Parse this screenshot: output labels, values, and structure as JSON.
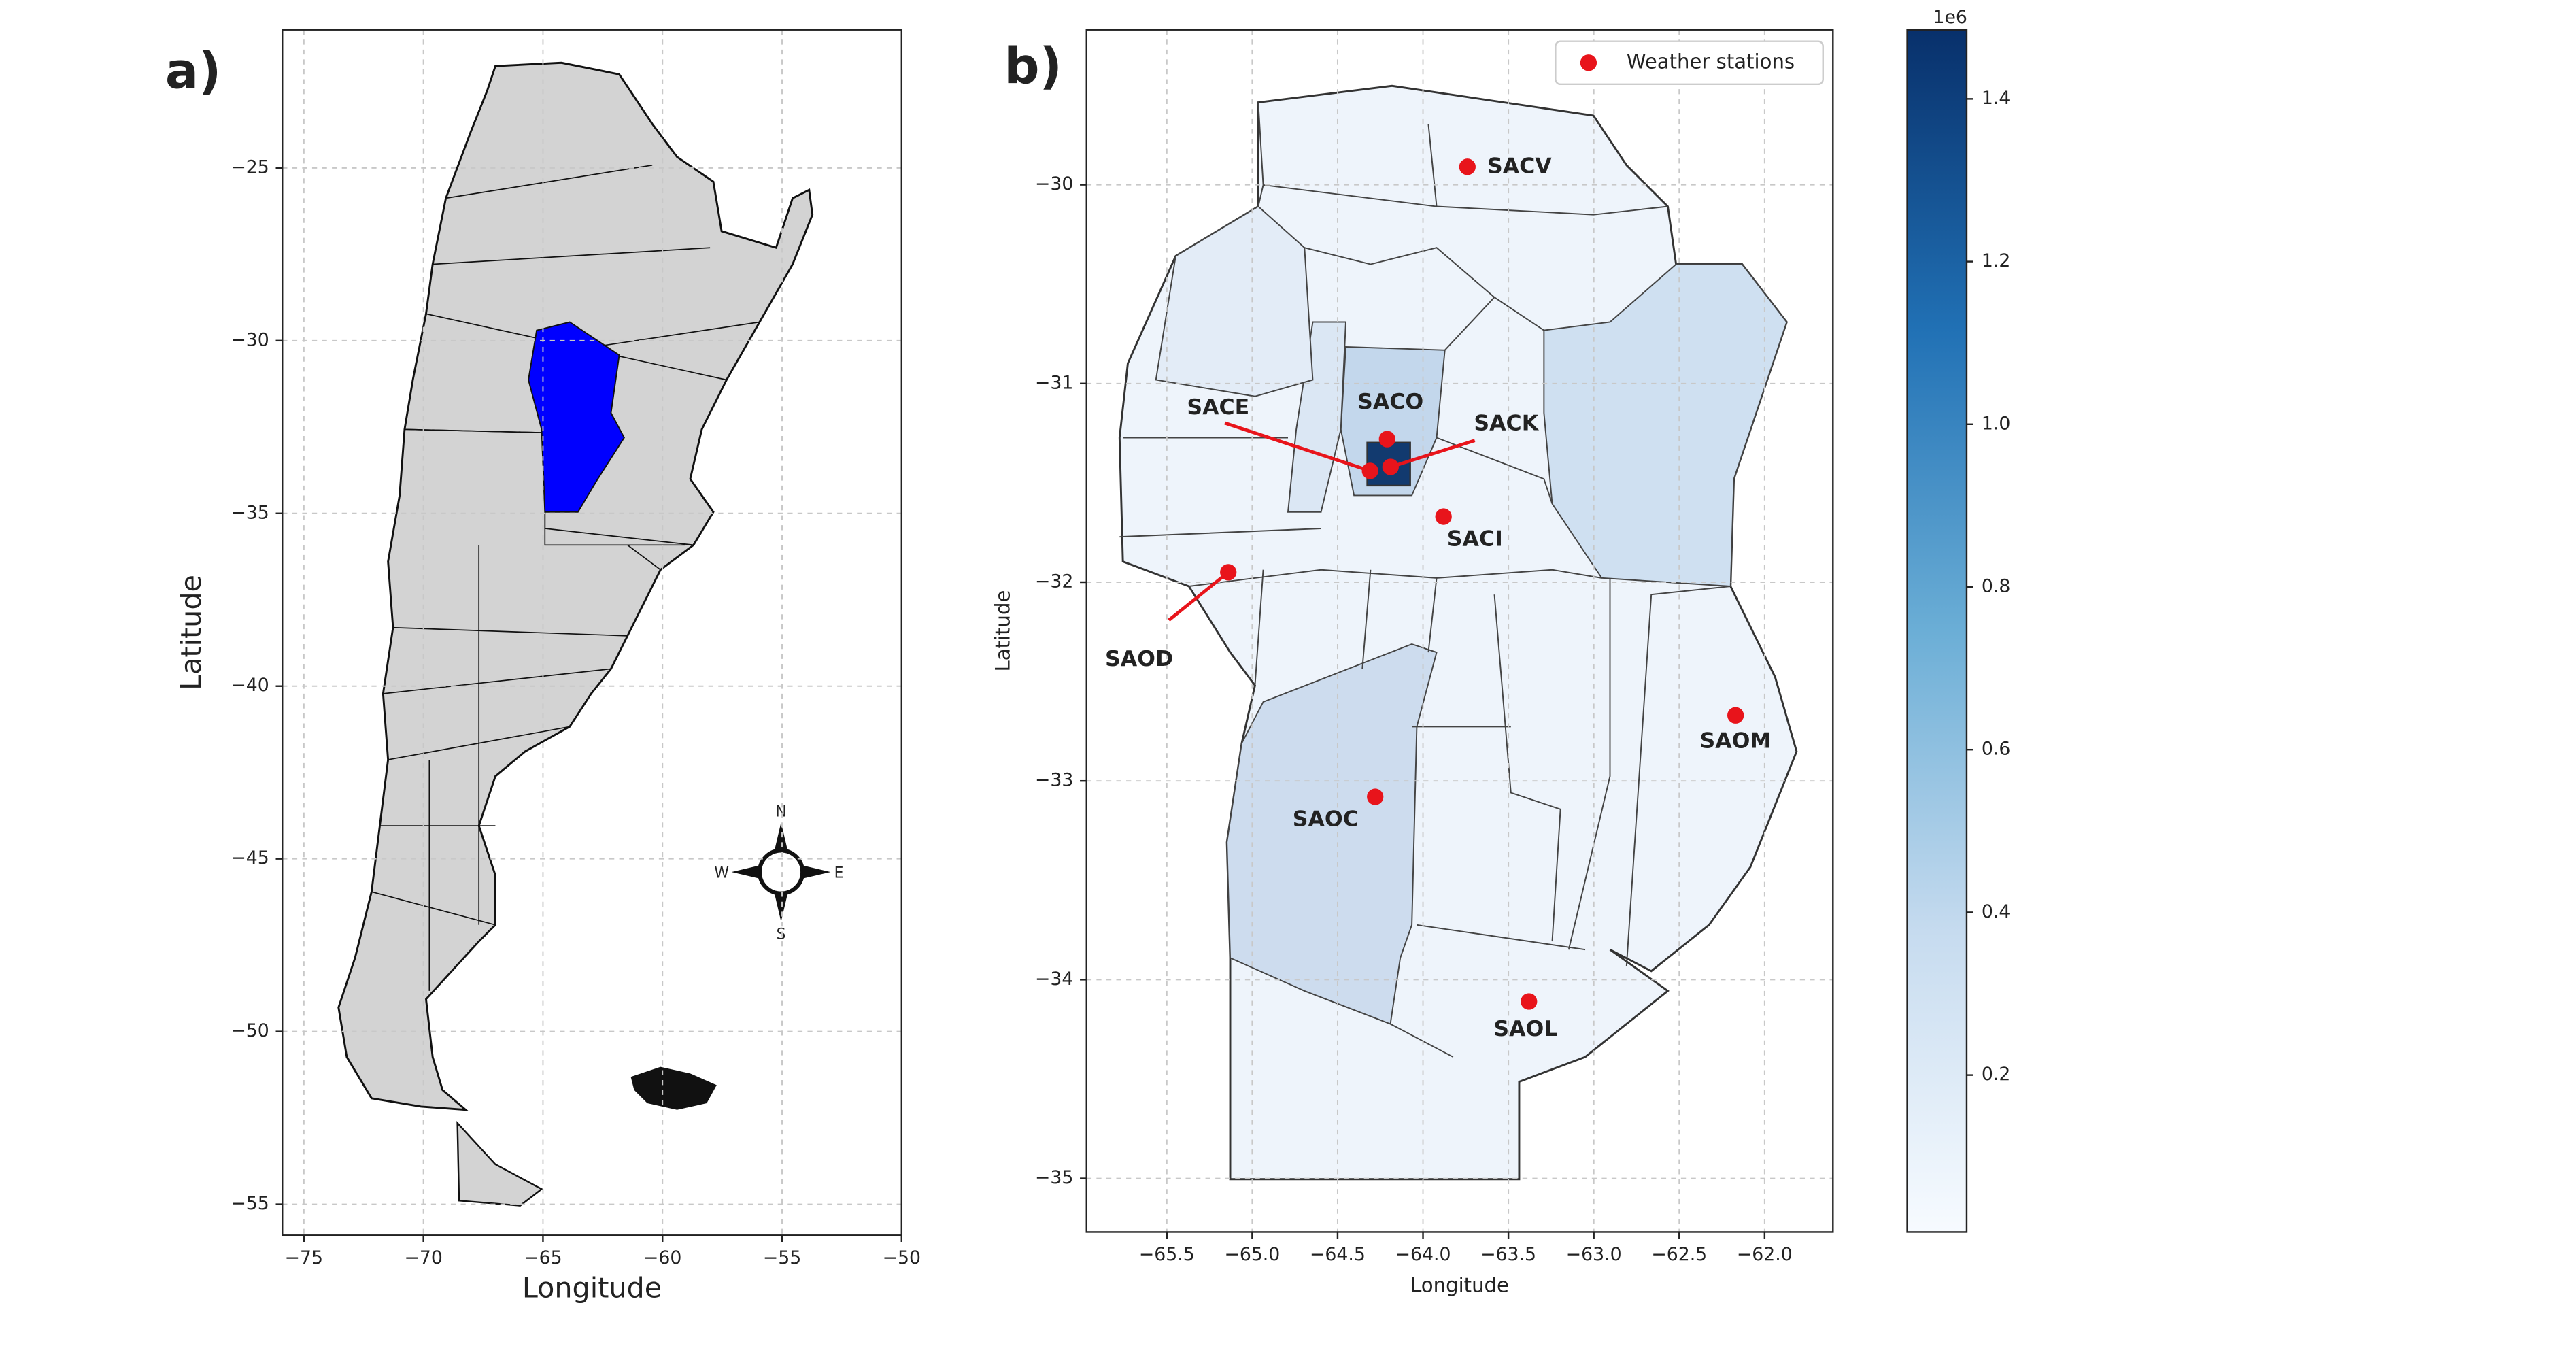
{
  "chart_data": [
    {
      "type": "map",
      "panel_label": "a)",
      "xlabel": "Longitude",
      "ylabel": "Latitude",
      "xlim": [
        -75.9,
        -50
      ],
      "ylim": [
        -55.9,
        -21
      ],
      "xticks": [
        {
          "value": -75,
          "label": "−75"
        },
        {
          "value": -70,
          "label": "−70"
        },
        {
          "value": -65,
          "label": "−65"
        },
        {
          "value": -60,
          "label": "−60"
        },
        {
          "value": -55,
          "label": "−55"
        },
        {
          "value": -50,
          "label": "−50"
        }
      ],
      "yticks": [
        {
          "value": -25,
          "label": "−25"
        },
        {
          "value": -30,
          "label": "−30"
        },
        {
          "value": -35,
          "label": "−35"
        },
        {
          "value": -40,
          "label": "−40"
        },
        {
          "value": -45,
          "label": "−45"
        },
        {
          "value": -50,
          "label": "−50"
        },
        {
          "value": -55,
          "label": "−55"
        }
      ],
      "grid": true,
      "compass": [
        "N",
        "E",
        "S",
        "W"
      ]
    },
    {
      "type": "scatter",
      "panel_label": "b)",
      "xlabel": "Longitude",
      "ylabel": "Latitude",
      "xlim": [
        -65.97,
        -61.6
      ],
      "ylim": [
        -35.27,
        -29.22
      ],
      "xticks": [
        {
          "value": -65.5,
          "label": "−65.5"
        },
        {
          "value": -65,
          "label": "−65.0"
        },
        {
          "value": -64.5,
          "label": "−64.5"
        },
        {
          "value": -64,
          "label": "−64.0"
        },
        {
          "value": -63.5,
          "label": "−63.5"
        },
        {
          "value": -63,
          "label": "−63.0"
        },
        {
          "value": -62.5,
          "label": "−62.5"
        },
        {
          "value": -62,
          "label": "−62.0"
        }
      ],
      "yticks": [
        {
          "value": -30,
          "label": "−30"
        },
        {
          "value": -31,
          "label": "−31"
        },
        {
          "value": -32,
          "label": "−32"
        },
        {
          "value": -33,
          "label": "−33"
        },
        {
          "value": -34,
          "label": "−34"
        },
        {
          "value": -35,
          "label": "−35"
        }
      ],
      "grid": true,
      "legend": "upper right",
      "series": [
        {
          "name": "Weather stations",
          "color": "#e8141b",
          "labels": [
            "SACV",
            "SACO",
            "SACE",
            "SACK",
            "SACI",
            "SAOD",
            "SAOM",
            "SAOC",
            "SAOL"
          ],
          "x": [
            -63.74,
            -64.21,
            -64.31,
            -64.19,
            -63.88,
            -65.14,
            -62.17,
            -64.28,
            -63.38
          ],
          "values": [
            -29.91,
            -31.28,
            -31.44,
            -31.42,
            -31.67,
            -31.95,
            -32.67,
            -33.08,
            -34.11
          ]
        }
      ],
      "colorbar": {
        "cmap": "Blues",
        "lim": [
          0.007,
          1.485
        ],
        "ticks": [
          0.2,
          0.4,
          0.6,
          0.8,
          {
            "value": 1,
            "label": "1.0"
          },
          1.2,
          1.4
        ],
        "offset_label": "1e6"
      }
    }
  ]
}
